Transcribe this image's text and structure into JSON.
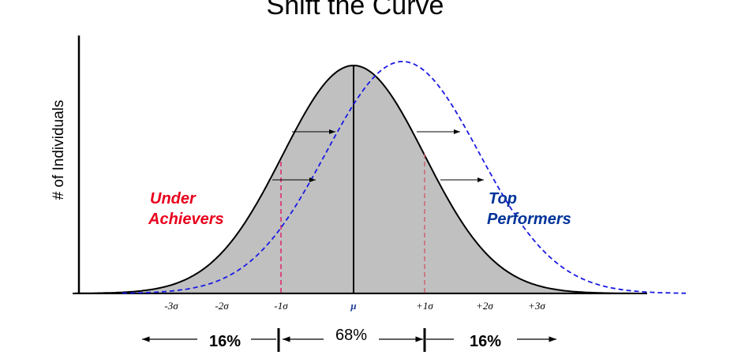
{
  "title": "Shift the Curve",
  "y_axis_label": "# of Individuals",
  "left_label": [
    "Under",
    "Achievers"
  ],
  "right_label": [
    "Top",
    "Performers"
  ],
  "sigma_labels": [
    "-3σ",
    "-2σ",
    "-1σ",
    "μ",
    "+1σ",
    "+2σ",
    "+3σ"
  ],
  "percentages": [
    "16%",
    "68%",
    "16%"
  ]
}
